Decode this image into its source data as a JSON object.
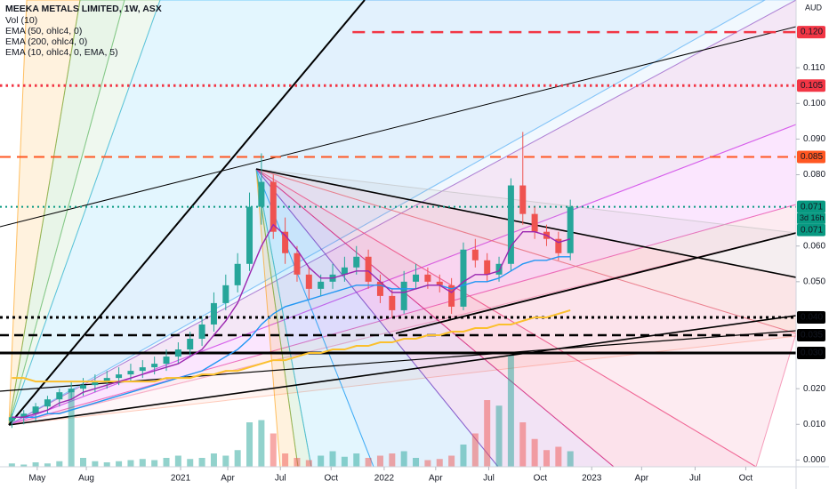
{
  "chart_data": {
    "type": "candlestick",
    "title": "MEEKA METALS LIMITED, 1W, ASX",
    "currency": "AUD",
    "volume_name": "Vol (10)",
    "x": [
      1,
      4,
      7,
      10,
      13,
      16,
      19,
      22,
      25,
      28,
      31,
      34,
      37,
      40,
      43,
      46,
      49,
      52,
      55,
      58,
      61,
      64,
      67,
      70,
      73,
      76,
      79,
      82,
      85,
      88,
      91,
      94,
      97,
      100,
      103,
      106,
      109,
      112,
      115,
      118,
      121,
      124,
      127,
      130,
      133,
      136,
      139,
      142
    ],
    "open": [
      0.011,
      0.012,
      0.013,
      0.015,
      0.017,
      0.019,
      0.02,
      0.021,
      0.022,
      0.023,
      0.024,
      0.025,
      0.026,
      0.027,
      0.029,
      0.031,
      0.034,
      0.038,
      0.044,
      0.049,
      0.055,
      0.071,
      0.078,
      0.064,
      0.058,
      0.052,
      0.048,
      0.05,
      0.052,
      0.054,
      0.057,
      0.05,
      0.046,
      0.042,
      0.05,
      0.052,
      0.05,
      0.049,
      0.043,
      0.059,
      0.056,
      0.052,
      0.055,
      0.077,
      0.069,
      0.064,
      0.062,
      0.058
    ],
    "high": [
      0.013,
      0.014,
      0.016,
      0.018,
      0.02,
      0.022,
      0.023,
      0.024,
      0.025,
      0.026,
      0.027,
      0.028,
      0.029,
      0.031,
      0.033,
      0.036,
      0.04,
      0.047,
      0.052,
      0.058,
      0.075,
      0.086,
      0.08,
      0.068,
      0.06,
      0.054,
      0.052,
      0.055,
      0.057,
      0.06,
      0.059,
      0.052,
      0.048,
      0.053,
      0.055,
      0.054,
      0.052,
      0.051,
      0.061,
      0.062,
      0.058,
      0.057,
      0.079,
      0.092,
      0.071,
      0.066,
      0.064,
      0.073
    ],
    "low": [
      0.009,
      0.01,
      0.011,
      0.013,
      0.015,
      0.017,
      0.018,
      0.019,
      0.02,
      0.021,
      0.022,
      0.023,
      0.024,
      0.025,
      0.027,
      0.029,
      0.032,
      0.036,
      0.042,
      0.047,
      0.053,
      0.066,
      0.062,
      0.055,
      0.05,
      0.045,
      0.046,
      0.048,
      0.05,
      0.052,
      0.048,
      0.044,
      0.04,
      0.041,
      0.048,
      0.048,
      0.047,
      0.041,
      0.042,
      0.054,
      0.05,
      0.05,
      0.053,
      0.066,
      0.062,
      0.06,
      0.056,
      0.056
    ],
    "close": [
      0.012,
      0.013,
      0.015,
      0.017,
      0.019,
      0.02,
      0.021,
      0.022,
      0.023,
      0.024,
      0.025,
      0.026,
      0.027,
      0.029,
      0.031,
      0.034,
      0.038,
      0.044,
      0.049,
      0.055,
      0.071,
      0.078,
      0.064,
      0.058,
      0.052,
      0.048,
      0.05,
      0.052,
      0.054,
      0.057,
      0.05,
      0.046,
      0.042,
      0.05,
      0.052,
      0.05,
      0.049,
      0.043,
      0.059,
      0.056,
      0.052,
      0.055,
      0.077,
      0.069,
      0.064,
      0.062,
      0.058,
      0.071
    ],
    "volume": [
      3,
      2,
      4,
      3,
      5,
      68,
      8,
      5,
      4,
      5,
      6,
      7,
      6,
      8,
      10,
      7,
      8,
      12,
      10,
      15,
      40,
      42,
      30,
      12,
      8,
      6,
      10,
      14,
      9,
      12,
      8,
      10,
      12,
      14,
      8,
      6,
      7,
      10,
      20,
      30,
      60,
      55,
      100,
      40,
      25,
      15,
      18,
      14
    ],
    "up_color": "#26a69a",
    "down_color": "#ef5350",
    "series": [
      {
        "name": "EMA (50, ohlc4, 0)",
        "color": "#2196f3",
        "values": [
          0.012,
          0.012,
          0.012,
          0.013,
          0.013,
          0.014,
          0.015,
          0.016,
          0.017,
          0.018,
          0.019,
          0.02,
          0.021,
          0.022,
          0.023,
          0.024,
          0.025,
          0.027,
          0.029,
          0.031,
          0.034,
          0.038,
          0.041,
          0.043,
          0.044,
          0.045,
          0.046,
          0.047,
          0.048,
          0.049,
          0.049,
          0.049,
          0.048,
          0.048,
          0.048,
          0.049,
          0.049,
          0.048,
          0.049,
          0.05,
          0.05,
          0.051,
          0.053,
          0.055,
          0.056,
          0.056,
          0.057,
          0.057
        ]
      },
      {
        "name": "EMA (200, ohlc4, 0)",
        "color": "#fbc02d",
        "values": [
          0.023,
          0.023,
          0.022,
          0.022,
          0.022,
          0.022,
          0.022,
          0.022,
          0.022,
          0.022,
          0.022,
          0.022,
          0.022,
          0.023,
          0.023,
          0.023,
          0.024,
          0.024,
          0.025,
          0.025,
          0.026,
          0.027,
          0.028,
          0.028,
          0.029,
          0.03,
          0.03,
          0.031,
          0.031,
          0.032,
          0.032,
          0.033,
          0.033,
          0.034,
          0.034,
          0.035,
          0.035,
          0.036,
          0.036,
          0.037,
          0.037,
          0.038,
          0.038,
          0.039,
          0.04,
          0.04,
          0.041,
          0.042
        ]
      },
      {
        "name": "EMA (10, ohlc4, 0, EMA, 5)",
        "color": "#9c27b0",
        "values": [
          0.012,
          0.012,
          0.013,
          0.014,
          0.016,
          0.017,
          0.019,
          0.02,
          0.021,
          0.022,
          0.023,
          0.024,
          0.025,
          0.026,
          0.027,
          0.029,
          0.031,
          0.035,
          0.039,
          0.044,
          0.052,
          0.06,
          0.066,
          0.063,
          0.059,
          0.054,
          0.051,
          0.051,
          0.052,
          0.053,
          0.053,
          0.05,
          0.047,
          0.047,
          0.048,
          0.049,
          0.049,
          0.047,
          0.05,
          0.052,
          0.052,
          0.053,
          0.06,
          0.064,
          0.064,
          0.063,
          0.061,
          0.062
        ]
      }
    ],
    "xlim": [
      -2,
      199
    ],
    "xticks": [
      {
        "value": 7.4,
        "label": "May"
      },
      {
        "value": 19.8,
        "label": "Aug"
      },
      {
        "value": 43.6,
        "label": "2021"
      },
      {
        "value": 55.5,
        "label": "Apr"
      },
      {
        "value": 68.8,
        "label": "Jul"
      },
      {
        "value": 81.6,
        "label": "Oct"
      },
      {
        "value": 95,
        "label": "2022"
      },
      {
        "value": 108,
        "label": "Apr"
      },
      {
        "value": 121.4,
        "label": "Jul"
      },
      {
        "value": 134.4,
        "label": "Oct"
      },
      {
        "value": 147.4,
        "label": "2023"
      },
      {
        "value": 160,
        "label": "Apr"
      },
      {
        "value": 173.5,
        "label": "Jul"
      },
      {
        "value": 186.3,
        "label": "Oct"
      }
    ],
    "ylim": [
      -0.0019,
      0.129
    ],
    "yticks": [
      {
        "value": 0,
        "label": "0.000"
      },
      {
        "value": 0.01,
        "label": "0.010"
      },
      {
        "value": 0.02,
        "label": "0.020"
      },
      {
        "value": 0.05,
        "label": "0.050"
      },
      {
        "value": 0.06,
        "label": "0.060"
      },
      {
        "value": 0.08,
        "label": "0.080"
      },
      {
        "value": 0.09,
        "label": "0.090"
      },
      {
        "value": 0.1,
        "label": "0.100"
      },
      {
        "value": 0.11,
        "label": "0.110"
      }
    ],
    "levels": [
      {
        "value": 0.12,
        "label": "0.120",
        "color": "#f23645",
        "dash": "14 8",
        "width": 2.5,
        "from": 87
      },
      {
        "value": 0.105,
        "label": "0.105",
        "color": "#f23645",
        "dash": "2.5 4",
        "width": 3
      },
      {
        "value": 0.085,
        "label": "0.085",
        "color": "#ff5722",
        "dash": "12 7",
        "width": 2
      },
      {
        "value": 0.071,
        "label": "0.071",
        "color": "#089981",
        "dash": "2 4",
        "width": 2
      },
      {
        "value": 0.04,
        "label": "0.040",
        "color": "#000000",
        "dash": "3 4",
        "width": 3
      },
      {
        "value": 0.035,
        "label": "0.035",
        "color": "#000000",
        "dash": "10 6",
        "width": 2.5
      },
      {
        "value": 0.03,
        "label": "0.030",
        "color": "#000000",
        "dash": "",
        "width": 3
      }
    ],
    "countdown": "3d 16h",
    "ema_price_label": "0.071"
  }
}
